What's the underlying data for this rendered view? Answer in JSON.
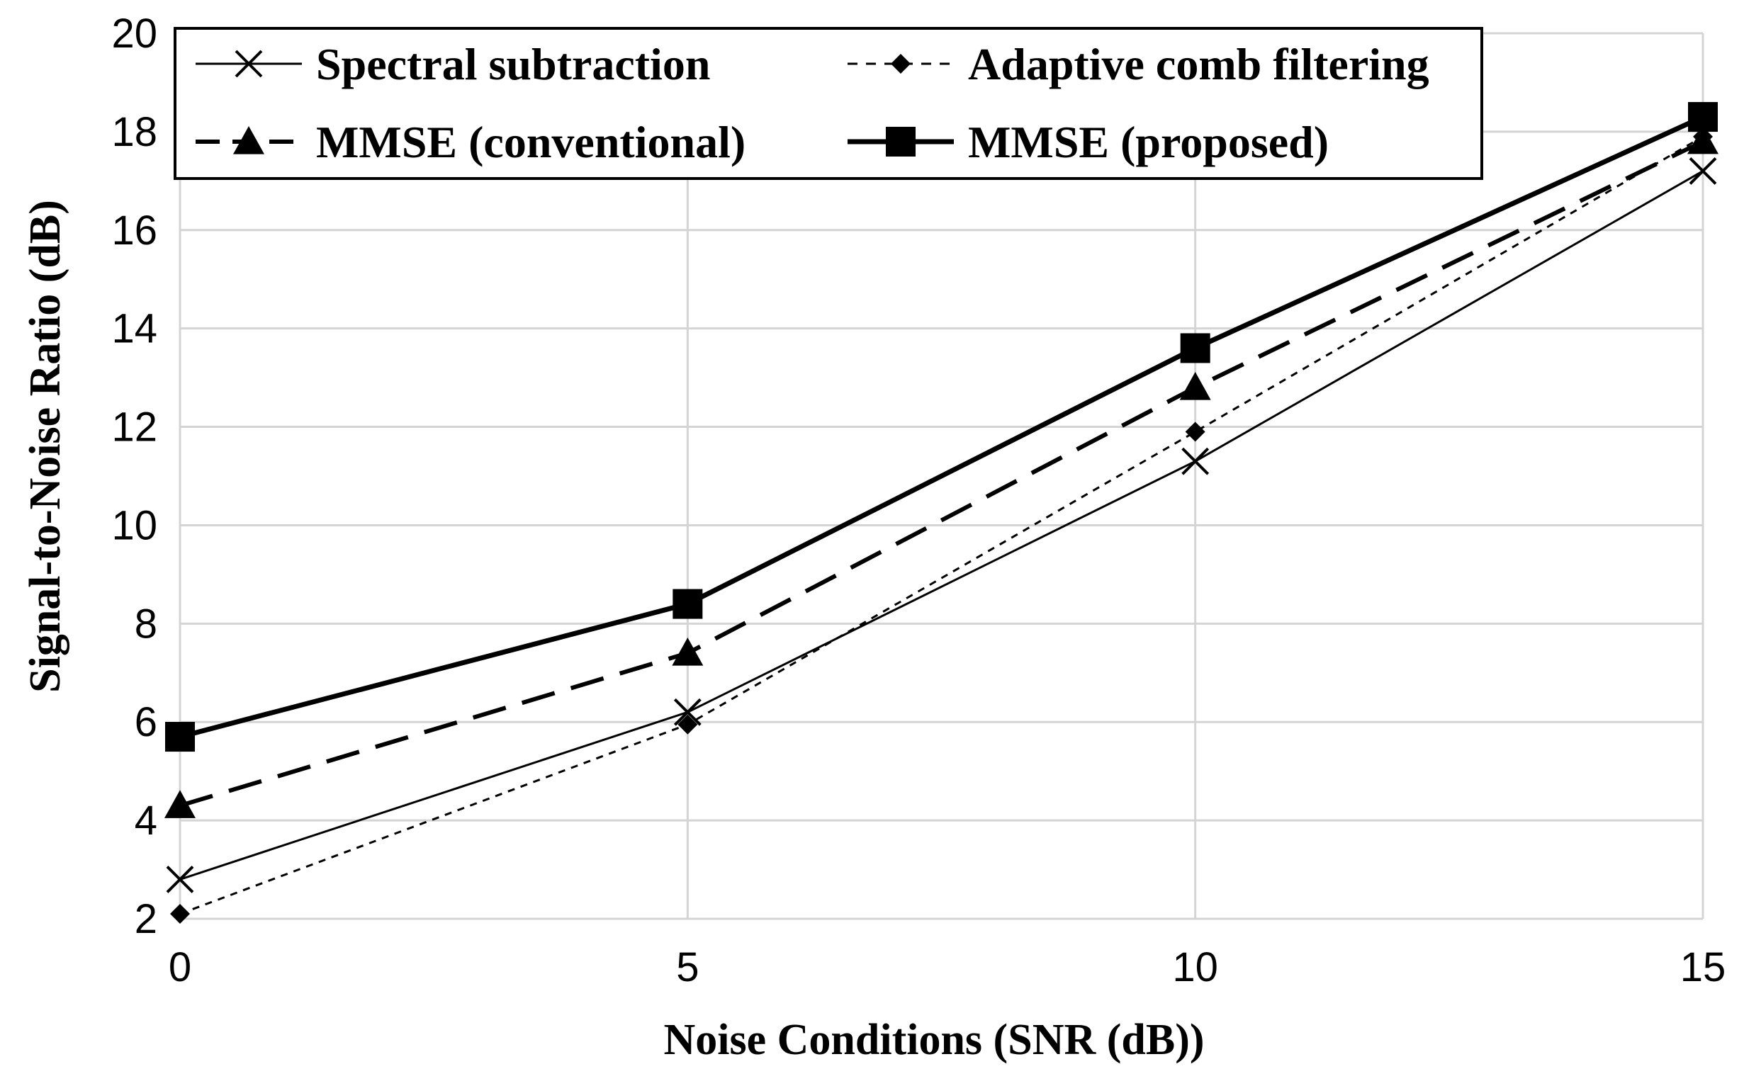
{
  "chart_data": {
    "type": "line",
    "title": "",
    "xlabel": "Noise Conditions (SNR (dB))",
    "ylabel": "Signal-to-Noise Ratio (dB)",
    "x": [
      0,
      5,
      10,
      15
    ],
    "x_ticks": [
      "0",
      "5",
      "10",
      "15"
    ],
    "y_ticks": [
      "2",
      "4",
      "6",
      "8",
      "10",
      "12",
      "14",
      "16",
      "18",
      "20"
    ],
    "xlim": [
      0,
      15
    ],
    "ylim": [
      2,
      20
    ],
    "grid": true,
    "legend_position": "top-left",
    "series": [
      {
        "name": "Spectral subtraction",
        "values": [
          2.8,
          6.2,
          11.3,
          17.2
        ],
        "marker": "x",
        "line_style": "solid-thin",
        "color": "#000000"
      },
      {
        "name": "Adaptive comb filtering",
        "values": [
          2.1,
          5.95,
          11.9,
          17.9
        ],
        "marker": "diamond",
        "line_style": "dotted",
        "color": "#000000"
      },
      {
        "name": "MMSE (conventional)",
        "values": [
          4.3,
          7.4,
          12.8,
          17.8
        ],
        "marker": "triangle",
        "line_style": "long-dash",
        "color": "#000000"
      },
      {
        "name": "MMSE (proposed)",
        "values": [
          5.7,
          8.4,
          13.6,
          18.3
        ],
        "marker": "square",
        "line_style": "solid-thick",
        "color": "#000000"
      }
    ]
  }
}
